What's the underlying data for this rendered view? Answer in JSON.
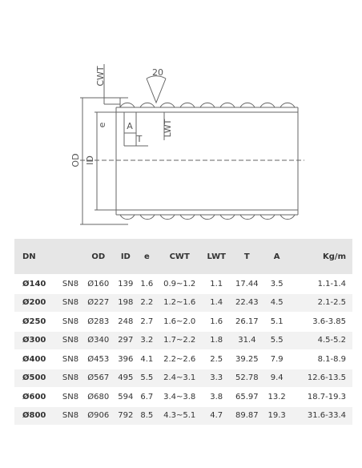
{
  "diagram": {
    "cwt": "CWT",
    "angle": "20",
    "e": "e",
    "a": "A",
    "t": "T",
    "lwt": "LWT",
    "od": "OD",
    "id": "ID"
  },
  "table": {
    "header": [
      "DN",
      "",
      "OD",
      "ID",
      "e",
      "CWT",
      "LWT",
      "T",
      "A",
      "Kg/m"
    ],
    "rows": [
      [
        "Ø140",
        "SN8",
        "Ø160",
        "139",
        "1.6",
        "0.9~1.2",
        "1.1",
        "17.44",
        "3.5",
        "1.1-1.4"
      ],
      [
        "Ø200",
        "SN8",
        "Ø227",
        "198",
        "2.2",
        "1.2~1.6",
        "1.4",
        "22.43",
        "4.5",
        "2.1-2.5"
      ],
      [
        "Ø250",
        "SN8",
        "Ø283",
        "248",
        "2.7",
        "1.6~2.0",
        "1.6",
        "26.17",
        "5.1",
        "3.6-3.85"
      ],
      [
        "Ø300",
        "SN8",
        "Ø340",
        "297",
        "3.2",
        "1.7~2.2",
        "1.8",
        "31.4",
        "5.5",
        "4.5-5.2"
      ],
      [
        "Ø400",
        "SN8",
        "Ø453",
        "396",
        "4.1",
        "2.2~2.6",
        "2.5",
        "39.25",
        "7.9",
        "8.1-8.9"
      ],
      [
        "Ø500",
        "SN8",
        "Ø567",
        "495",
        "5.5",
        "2.4~3.1",
        "3.3",
        "52.78",
        "9.4",
        "12.6-13.5"
      ],
      [
        "Ø600",
        "SN8",
        "Ø680",
        "594",
        "6.7",
        "3.4~3.8",
        "3.8",
        "65.97",
        "13.2",
        "18.7-19.3"
      ],
      [
        "Ø800",
        "SN8",
        "Ø906",
        "792",
        "8.5",
        "4.3~5.1",
        "4.7",
        "89.87",
        "19.3",
        "31.6-33.4"
      ]
    ]
  }
}
